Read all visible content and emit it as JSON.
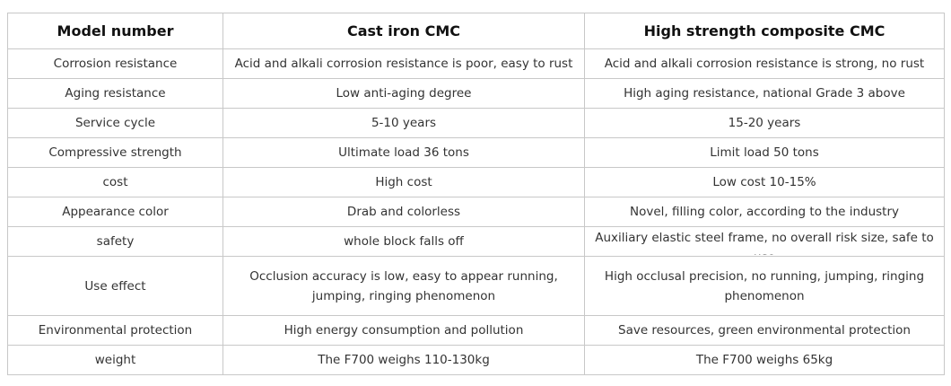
{
  "table": {
    "header": [
      "Model number",
      "Cast iron CMC",
      "High strength composite CMC"
    ],
    "rows": [
      [
        "Corrosion resistance",
        "Acid and alkali corrosion resistance is poor, easy to rust",
        "Acid and alkali corrosion resistance is strong, no rust"
      ],
      [
        "Aging resistance",
        "Low anti-aging degree",
        "High aging resistance, national Grade 3 above"
      ],
      [
        "Service cycle",
        "5-10 years",
        "15-20 years"
      ],
      [
        "Compressive strength",
        "Ultimate load 36 tons",
        "Limit load 50 tons"
      ],
      [
        "cost",
        "High cost",
        "Low cost 10-15%"
      ],
      [
        "Appearance color",
        "Drab and colorless",
        "Novel, filling color, according to the industry"
      ],
      [
        "safety",
        "whole block falls off",
        "Auxiliary elastic steel frame, no overall risk size, safe to use"
      ],
      [
        "Use effect",
        "Occlusion accuracy is low, easy to appear running, jumping, ringing phenomenon",
        "High occlusal precision, no running, jumping, ringing phenomenon"
      ],
      [
        "Environmental protection",
        "High energy consumption and pollution",
        "Save resources, green environmental protection"
      ],
      [
        "weight",
        "The F700 weighs 110-130kg",
        "The F700 weighs 65kg"
      ]
    ]
  }
}
